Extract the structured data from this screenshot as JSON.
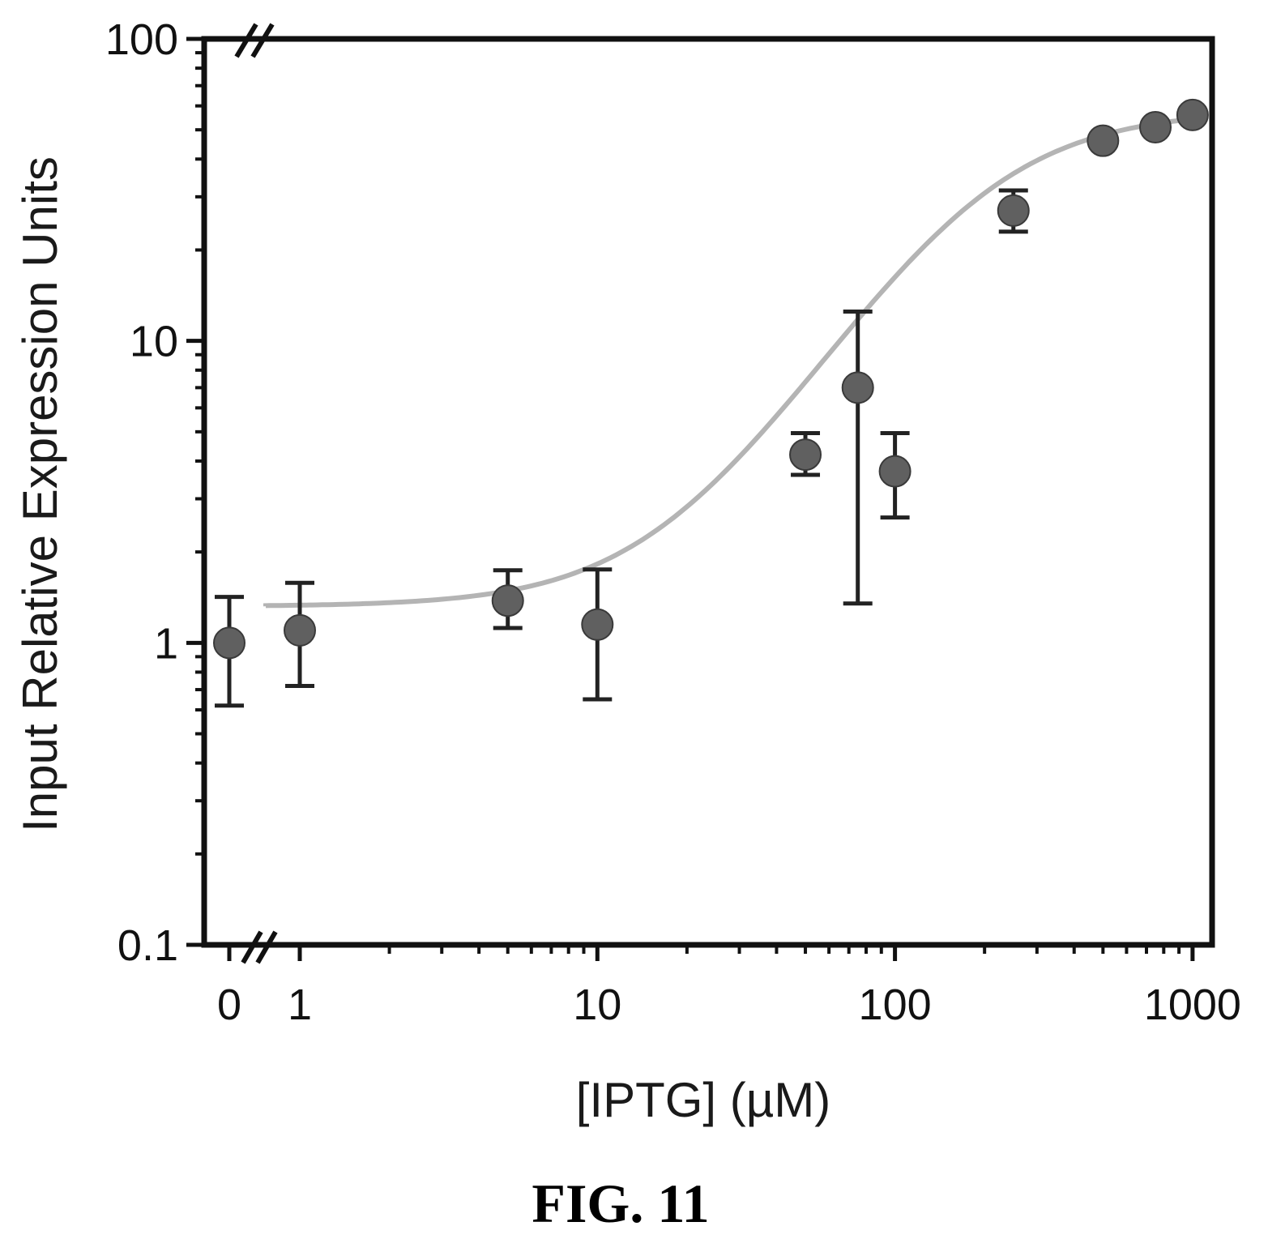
{
  "figure": {
    "caption": "FIG. 11"
  },
  "chart_data": {
    "type": "scatter",
    "title": "",
    "xlabel": "[IPTG] (µM)",
    "ylabel": "Input Relative Expression Units",
    "x_scale": "log",
    "y_scale": "log",
    "x_axis_break": true,
    "y_axis_break": true,
    "xlim": [
      1,
      1000
    ],
    "ylim": [
      0.1,
      100
    ],
    "x_tick_labels": [
      "0",
      "1",
      "10",
      "100",
      "1000"
    ],
    "y_tick_labels": [
      "0.1",
      "1",
      "10",
      "100"
    ],
    "grid": false,
    "legend": "none",
    "series": [
      {
        "points": [
          {
            "x": 0,
            "y": 1.0,
            "err_low": 0.62,
            "err_high": 1.42
          },
          {
            "x": 1,
            "y": 1.1,
            "err_low": 0.72,
            "err_high": 1.58
          },
          {
            "x": 5,
            "y": 1.38,
            "err_low": 1.12,
            "err_high": 1.74
          },
          {
            "x": 10,
            "y": 1.15,
            "err_low": 0.65,
            "err_high": 1.75
          },
          {
            "x": 50,
            "y": 4.2,
            "err_low": 3.6,
            "err_high": 4.95
          },
          {
            "x": 75,
            "y": 7.0,
            "err_low": 1.35,
            "err_high": 12.5
          },
          {
            "x": 100,
            "y": 3.7,
            "err_low": 2.6,
            "err_high": 4.95
          },
          {
            "x": 250,
            "y": 27.0,
            "err_low": 23.0,
            "err_high": 31.5
          },
          {
            "x": 500,
            "y": 46.0
          },
          {
            "x": 750,
            "y": 51.0
          },
          {
            "x": 1000,
            "y": 56.0
          }
        ]
      }
    ],
    "fit_curve": {
      "type": "sigmoid",
      "bottom": 1.32,
      "top": 58,
      "ec50": 190,
      "hill": 1.6,
      "x_range": [
        0.3,
        1000
      ]
    },
    "colors": {
      "points": "#606060",
      "fit": "#b4b4b4",
      "axis": "#111111",
      "error_bars": "#222222"
    }
  }
}
